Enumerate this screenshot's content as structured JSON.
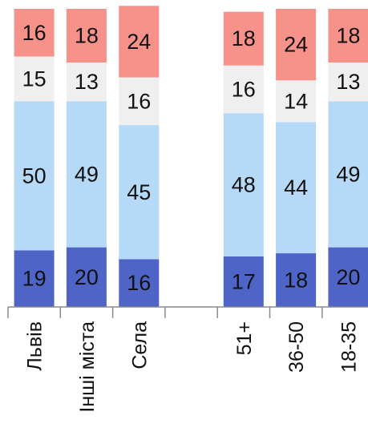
{
  "chart_data": {
    "type": "bar",
    "stacked": true,
    "orientation": "vertical",
    "categories": [
      "Львів",
      "Інші міста",
      "Села",
      "",
      "51+",
      "36-50",
      "18-35"
    ],
    "series": [
      {
        "color": "#4e65c7",
        "values": [
          19,
          20,
          16,
          null,
          17,
          18,
          20
        ]
      },
      {
        "color": "#b5d9f6",
        "values": [
          50,
          49,
          45,
          null,
          48,
          44,
          49
        ]
      },
      {
        "color": "#efefef",
        "values": [
          15,
          13,
          16,
          null,
          16,
          14,
          13
        ]
      },
      {
        "color": "#f6928a",
        "values": [
          16,
          18,
          24,
          null,
          18,
          24,
          18
        ]
      }
    ],
    "ylim": [
      0,
      100
    ],
    "grid": false,
    "legend": "none",
    "data_labels": true
  }
}
